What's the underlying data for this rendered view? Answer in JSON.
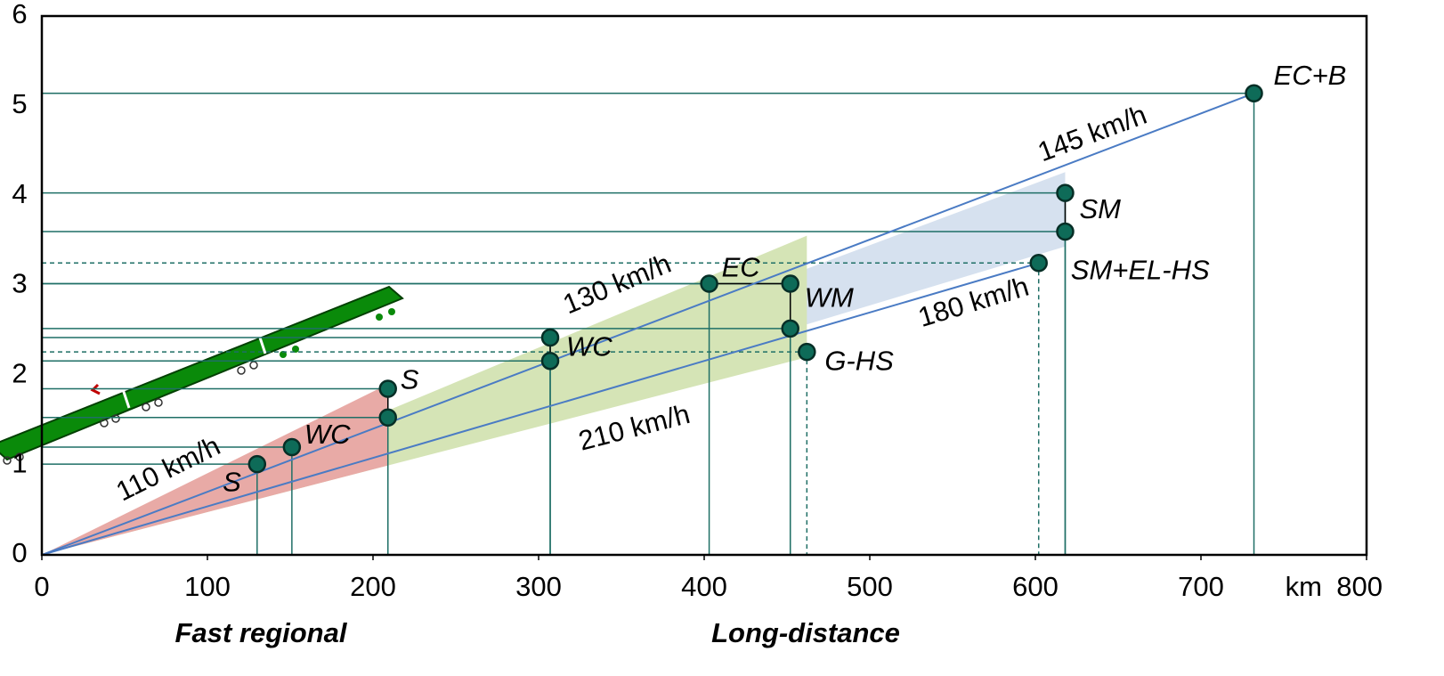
{
  "chart_data": {
    "type": "scatter",
    "x_label": "km",
    "xlim": [
      0,
      800
    ],
    "ylim": [
      0,
      6
    ],
    "xticks": [
      0,
      100,
      200,
      300,
      400,
      500,
      600,
      700,
      800
    ],
    "yticks": [
      0,
      1,
      2,
      3,
      4,
      5,
      6
    ],
    "color": "#0e6b58",
    "x": [
      130,
      151,
      209,
      209,
      307,
      307,
      403,
      452,
      452,
      462,
      618,
      618,
      602,
      732
    ],
    "y": [
      1.01,
      1.2,
      1.85,
      1.53,
      2.16,
      2.42,
      3.02,
      3.02,
      2.52,
      2.26,
      4.03,
      3.6,
      3.25,
      5.14
    ],
    "labels": [
      "S",
      "WC",
      "S",
      null,
      "WC",
      null,
      "EC",
      "WM",
      null,
      "G-HS",
      "SM",
      null,
      "SM+EL-HS",
      "EC+B"
    ],
    "dashed": [
      false,
      false,
      false,
      false,
      false,
      false,
      false,
      false,
      false,
      true,
      false,
      false,
      true,
      false
    ],
    "speed_bands": [
      {
        "value": 110,
        "label": "110 km/h"
      },
      {
        "value": 130,
        "label": "130 km/h"
      },
      {
        "value": 145,
        "label": "145 km/h"
      },
      {
        "value": 180,
        "label": "180 km/h"
      },
      {
        "value": 210,
        "label": "210 km/h"
      }
    ],
    "group_labels": [
      {
        "label": "Fast regional",
        "color": "#c0504d"
      },
      {
        "label": "Long-distance",
        "color": "#2f5597"
      }
    ]
  }
}
